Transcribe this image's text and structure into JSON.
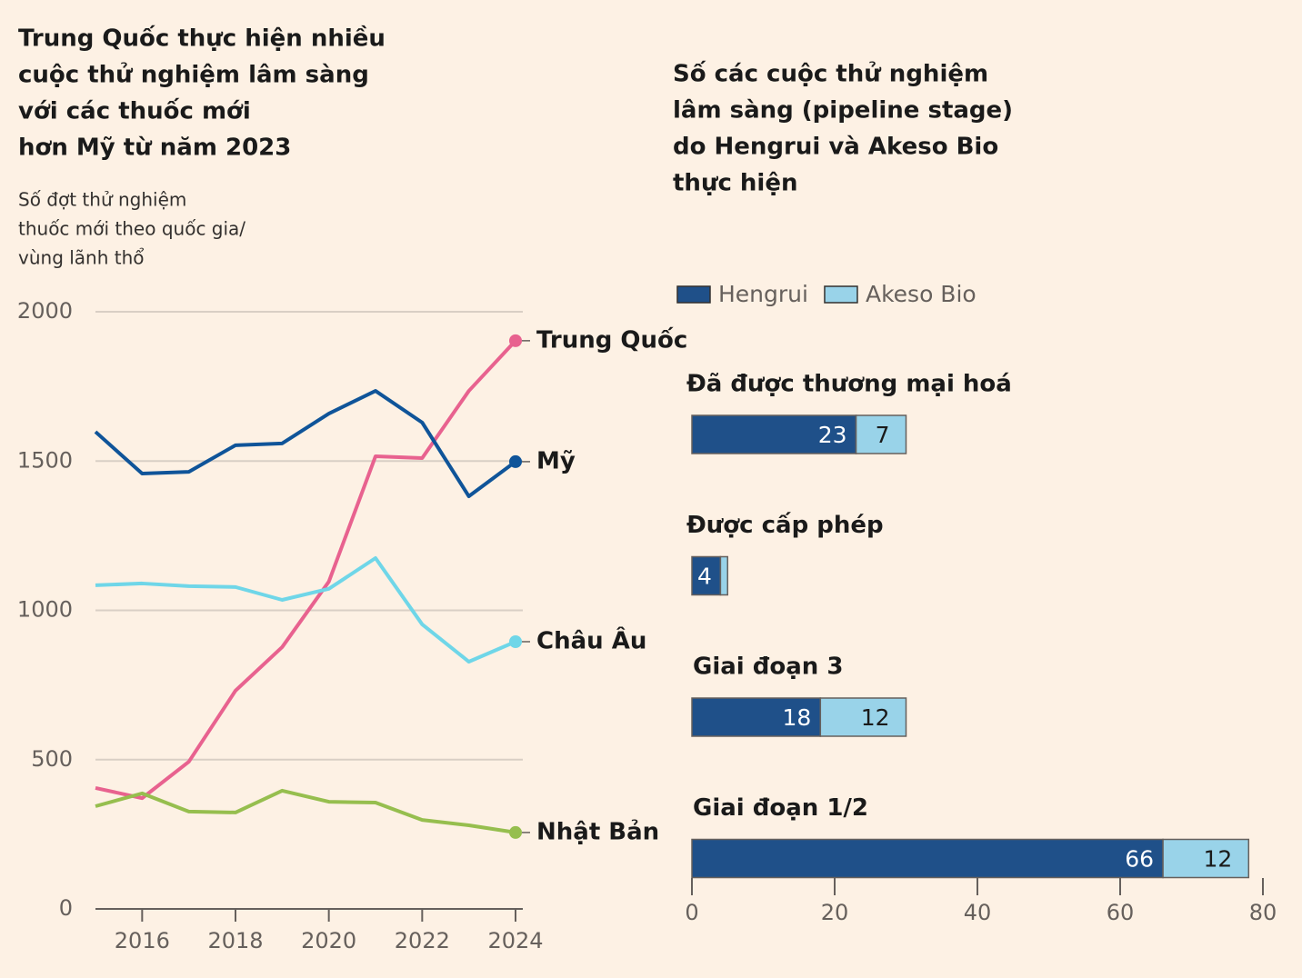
{
  "chart_data": [
    {
      "type": "line",
      "title": [
        "Trung Quốc thực hiện nhiều",
        "cuộc thử nghiệm lâm sàng",
        "với các thuốc mới",
        "hơn Mỹ từ năm 2023"
      ],
      "subtitle": [
        "Số đợt thử nghiệm",
        "thuốc mới theo quốc gia/",
        "vùng lãnh thổ"
      ],
      "x": [
        2015,
        2016,
        2017,
        2018,
        2019,
        2020,
        2021,
        2022,
        2023,
        2024
      ],
      "xlim": [
        2015,
        2024
      ],
      "xticks": [
        2016,
        2018,
        2020,
        2022,
        2024
      ],
      "ylim": [
        0,
        2000
      ],
      "yticks": [
        0,
        500,
        1000,
        1500,
        2000
      ],
      "grid": true,
      "series": [
        {
          "name": "Trung Quốc",
          "color": "#e8628f",
          "values": [
            405,
            371,
            493,
            731,
            877,
            1096,
            1516,
            1510,
            1735,
            1903
          ]
        },
        {
          "name": "Mỹ",
          "color": "#0f5499",
          "values": [
            1598,
            1458,
            1464,
            1553,
            1559,
            1659,
            1735,
            1629,
            1382,
            1498
          ]
        },
        {
          "name": "Châu Âu",
          "color": "#6fd6e8",
          "values": [
            1084,
            1090,
            1081,
            1078,
            1035,
            1072,
            1175,
            953,
            828,
            895
          ]
        },
        {
          "name": "Nhật Bản",
          "color": "#96be4e",
          "values": [
            344,
            387,
            326,
            323,
            396,
            359,
            356,
            298,
            280,
            256
          ]
        }
      ]
    },
    {
      "type": "stacked-bar-horizontal",
      "title": [
        "Số các cuộc thử nghiệm",
        "lâm sàng (pipeline stage)",
        "do Hengrui và Akeso Bio",
        "thực hiện"
      ],
      "categories": [
        "Đã được thương mại hoá",
        "Được cấp phép",
        "Giai đoạn 3",
        "Giai đoạn 1/2"
      ],
      "xlim": [
        0,
        80
      ],
      "xticks": [
        0,
        20,
        40,
        60,
        80
      ],
      "legend": "top",
      "series": [
        {
          "name": "Hengrui",
          "color": "#1f5089",
          "values": [
            23,
            4,
            18,
            66
          ]
        },
        {
          "name": "Akeso Bio",
          "color": "#99d3e9",
          "values": [
            7,
            1,
            12,
            12
          ]
        }
      ]
    }
  ]
}
